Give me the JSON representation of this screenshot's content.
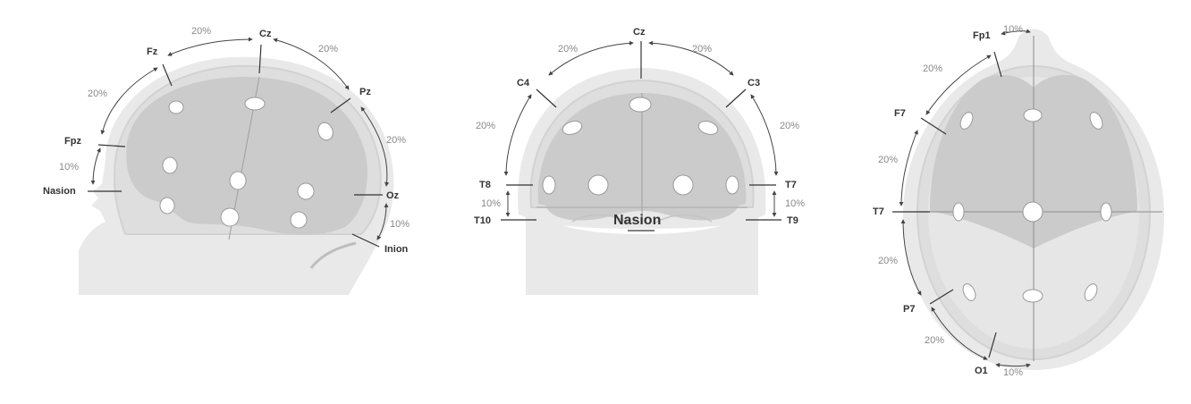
{
  "colors": {
    "background": "#ffffff",
    "skin": "#e9e9e9",
    "skull": "#dedede",
    "brain": "#cbcbcb",
    "electrode": "#ffffff",
    "label": "#333333",
    "percent": "#888888"
  },
  "side_view": {
    "labels": {
      "fz": "Fz",
      "cz": "Cz",
      "pz": "Pz",
      "fpz": "Fpz",
      "nasion": "Nasion",
      "oz": "Oz",
      "inion": "Inion"
    },
    "percents": [
      "20%",
      "20%",
      "20%",
      "20%",
      "10%",
      "10%"
    ]
  },
  "front_view": {
    "labels": {
      "cz": "Cz",
      "c4": "C4",
      "c3": "C3",
      "t8": "T8",
      "t7": "T7",
      "t10": "T10",
      "t9": "T9",
      "nasion": "Nasion"
    },
    "percents": [
      "20%",
      "20%",
      "20%",
      "20%",
      "10%",
      "10%"
    ]
  },
  "top_view": {
    "labels": {
      "fp1": "Fp1",
      "f7": "F7",
      "t7": "T7",
      "p7": "P7",
      "o1": "O1"
    },
    "percents": [
      "10%",
      "20%",
      "20%",
      "20%",
      "20%",
      "10%"
    ]
  }
}
